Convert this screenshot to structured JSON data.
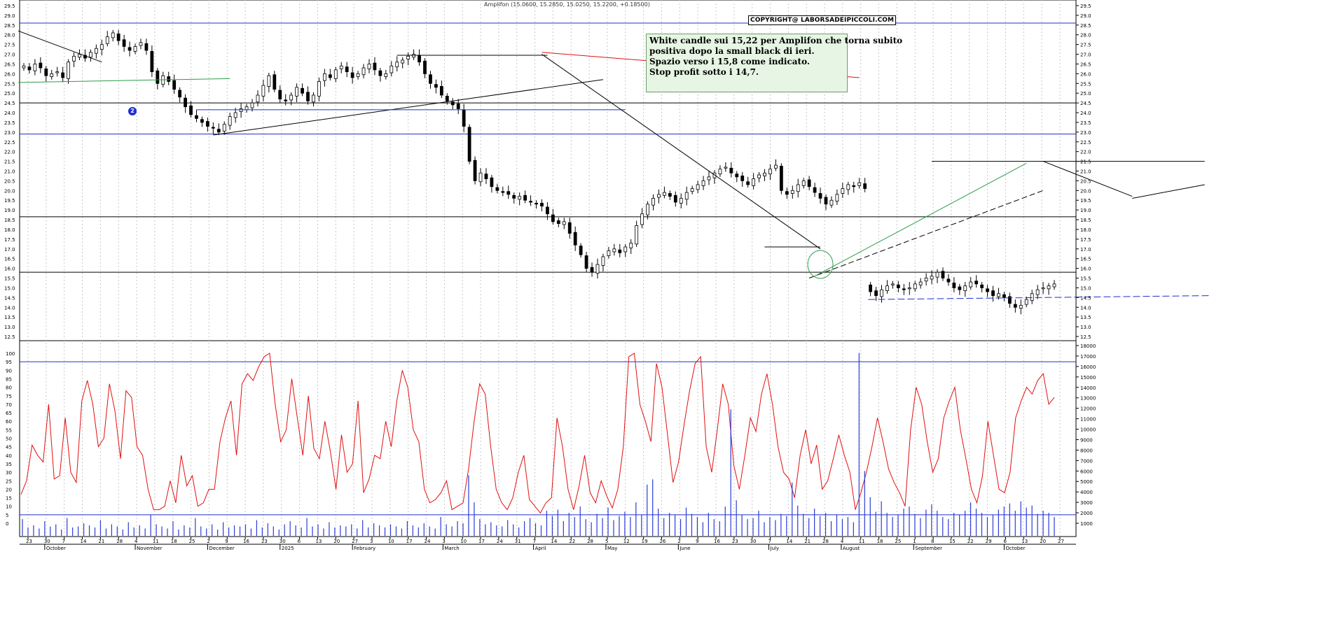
{
  "ohlc_label": "Amplifon (15.0600, 15.2850, 15.0250, 15.2200, +0.18500)",
  "copyright": "COPYRIGHT@ LABORSADEIPICCOLI.COM",
  "note_lines": [
    "White candle sui 15,22 per Amplifon che torna subito",
    "positiva dopo la small black di ieri.",
    "Spazio verso i 15,8 come indicato.",
    "Stop profit sotto i 14,7."
  ],
  "marker_label": "2",
  "colors": {
    "price_bg": "#ffffff",
    "grid": "#c8c8c8",
    "blue_line": "#1f2fcf",
    "red_line": "#e01010",
    "green_line": "#2a9d4a",
    "indicator_line": "#e01010",
    "volume_bar": "#2b3bd6"
  },
  "chart_data": [
    {
      "type": "candlestick",
      "title": "Amplifon",
      "y_ticks": [
        "12.5",
        "13.0",
        "13.5",
        "14.0",
        "14.5",
        "15.0",
        "15.5",
        "16.0",
        "16.5",
        "17.0",
        "17.5",
        "18.0",
        "18.5",
        "19.0",
        "19.5",
        "20.0",
        "20.5",
        "21.0",
        "21.5",
        "22.0",
        "22.5",
        "23.0",
        "23.5",
        "24.0",
        "24.5",
        "25.0",
        "25.5",
        "26.0",
        "26.5",
        "27.0",
        "27.5",
        "28.0",
        "28.5",
        "29.0",
        "29.5"
      ],
      "ylim": [
        12.3,
        29.8
      ],
      "horizontal_levels": [
        {
          "value": 28.6,
          "color": "blue"
        },
        {
          "value": 24.5,
          "color": "black"
        },
        {
          "value": 22.9,
          "color": "blue"
        },
        {
          "value": 18.65,
          "color": "black"
        },
        {
          "value": 15.8,
          "color": "black"
        }
      ],
      "x_date_ticks": [
        "23",
        "30",
        "7",
        "14",
        "21",
        "28",
        "4",
        "11",
        "18",
        "25",
        "2",
        "9",
        "16",
        "23",
        "30",
        "6",
        "13",
        "20",
        "27",
        "3",
        "10",
        "17",
        "24",
        "3",
        "10",
        "17",
        "24",
        "31",
        "7",
        "14",
        "22",
        "28",
        "5",
        "12",
        "19",
        "26",
        "2",
        "9",
        "16",
        "23",
        "30",
        "7",
        "14",
        "21",
        "28",
        "4",
        "11",
        "18",
        "25",
        "1",
        "8",
        "15",
        "22",
        "29",
        "6",
        "13",
        "20",
        "27"
      ],
      "x_month_labels": [
        "October",
        "November",
        "December",
        "2025",
        "February",
        "March",
        "April",
        "May",
        "June",
        "July",
        "August",
        "September",
        "October"
      ],
      "closes": [
        26.4,
        26.2,
        26.5,
        26.3,
        25.9,
        26.0,
        26.1,
        25.8,
        26.6,
        26.9,
        27.0,
        26.8,
        27.1,
        27.3,
        27.5,
        27.9,
        28.1,
        27.7,
        27.4,
        27.2,
        27.4,
        27.6,
        27.2,
        26.1,
        25.5,
        25.9,
        25.6,
        25.2,
        24.8,
        24.3,
        23.9,
        23.7,
        23.5,
        23.3,
        23.2,
        23.0,
        23.4,
        23.8,
        24.0,
        24.2,
        24.3,
        24.5,
        24.9,
        25.4,
        25.9,
        25.2,
        24.7,
        24.6,
        24.9,
        25.3,
        25.0,
        24.6,
        24.9,
        25.6,
        26.0,
        25.8,
        26.2,
        26.4,
        26.1,
        25.8,
        26.0,
        26.3,
        26.5,
        26.2,
        25.9,
        26.0,
        26.4,
        26.6,
        26.7,
        26.9,
        27.0,
        26.6,
        26.0,
        25.5,
        25.3,
        24.9,
        24.6,
        24.4,
        24.2,
        23.3,
        21.5,
        20.5,
        20.9,
        20.6,
        20.2,
        20.0,
        19.9,
        19.8,
        19.6,
        19.7,
        19.5,
        19.4,
        19.3,
        19.2,
        18.8,
        18.4,
        18.3,
        18.4,
        17.8,
        17.2,
        16.7,
        16.0,
        15.8,
        16.2,
        16.6,
        16.9,
        17.0,
        16.8,
        17.1,
        17.3,
        18.2,
        18.8,
        19.3,
        19.6,
        19.8,
        19.9,
        19.7,
        19.4,
        19.6,
        19.9,
        20.1,
        20.3,
        20.5,
        20.7,
        20.9,
        21.1,
        21.2,
        20.9,
        20.7,
        20.5,
        20.3,
        20.6,
        20.8,
        20.9,
        21.1,
        21.3,
        20.0,
        19.8,
        20.0,
        20.3,
        20.5,
        20.2,
        19.9,
        19.6,
        19.3,
        19.5,
        19.8,
        20.1,
        20.3,
        20.2,
        20.4,
        20.1,
        14.8,
        14.6,
        14.9,
        15.1,
        15.2,
        15.0,
        14.9,
        15.0,
        15.2,
        15.3,
        15.5,
        15.6,
        15.8,
        15.5,
        15.3,
        15.0,
        14.9,
        15.1,
        15.3,
        15.2,
        15.0,
        14.8,
        14.6,
        14.7,
        14.5,
        14.2,
        14.0,
        14.1,
        14.4,
        14.7,
        14.9,
        15.0,
        15.1,
        15.2
      ]
    },
    {
      "type": "line",
      "y_ticks": [
        "0",
        "5",
        "10",
        "15",
        "20",
        "25",
        "30",
        "35",
        "40",
        "45",
        "50",
        "55",
        "60",
        "65",
        "70",
        "75",
        "80",
        "85",
        "90",
        "95",
        "100"
      ],
      "ylim": [
        0,
        100
      ],
      "horizontal_levels": [
        95,
        5
      ],
      "series": [
        {
          "values": [
            17,
            25,
            46,
            40,
            36,
            70,
            26,
            28,
            62,
            30,
            24,
            72,
            84,
            70,
            45,
            50,
            82,
            66,
            38,
            78,
            74,
            45,
            40,
            20,
            8,
            8,
            10,
            25,
            12,
            40,
            22,
            28,
            10,
            12,
            20,
            20,
            48,
            62,
            72,
            40,
            82,
            88,
            84,
            92,
            98,
            100,
            70,
            48,
            55,
            85,
            62,
            40,
            75,
            44,
            38,
            60,
            42,
            20,
            52,
            30,
            35,
            72,
            18,
            26,
            40,
            38,
            60,
            45,
            72,
            90,
            80,
            55,
            48,
            20,
            12,
            14,
            18,
            25,
            8,
            10,
            12,
            32,
            60,
            82,
            76,
            45,
            20,
            12,
            8,
            15,
            30,
            40,
            14,
            10,
            6,
            12,
            15,
            62,
            45,
            20,
            8,
            22,
            40,
            18,
            12,
            25,
            16,
            9,
            20,
            45,
            98,
            100,
            70,
            60,
            48,
            94,
            80,
            52,
            24,
            36,
            58,
            78,
            94,
            98,
            45,
            30,
            55,
            82,
            70,
            34,
            20,
            40,
            62,
            54,
            76,
            88,
            70,
            45,
            30,
            26,
            15,
            40,
            55,
            35,
            46,
            20,
            25,
            38,
            52,
            40,
            30,
            8,
            18,
            30,
            45,
            62,
            48,
            32,
            24,
            18,
            10,
            55,
            80,
            70,
            48,
            30,
            38,
            62,
            72,
            80,
            55,
            38,
            20,
            12,
            28,
            60,
            40,
            20,
            18,
            30,
            62,
            72,
            80,
            76,
            84,
            88,
            70,
            74
          ]
        }
      ]
    },
    {
      "type": "bar",
      "y_ticks": [
        "1000",
        "2000",
        "3000",
        "4000",
        "5000",
        "6000",
        "7000",
        "8000",
        "9000",
        "10000",
        "11000",
        "12000",
        "13000",
        "14000",
        "15000",
        "16000",
        "17000",
        "18000"
      ],
      "ylim": [
        0,
        18000
      ],
      "values": [
        1400,
        600,
        800,
        500,
        1200,
        700,
        900,
        400,
        1500,
        600,
        700,
        1000,
        800,
        600,
        1300,
        500,
        900,
        700,
        400,
        1100,
        600,
        800,
        500,
        1800,
        900,
        700,
        500,
        1200,
        400,
        800,
        600,
        1500,
        700,
        500,
        900,
        400,
        1100,
        600,
        800,
        700,
        900,
        500,
        1300,
        600,
        1000,
        700,
        400,
        900,
        1200,
        800,
        600,
        1500,
        700,
        900,
        500,
        1100,
        600,
        800,
        700,
        900,
        500,
        1300,
        600,
        1000,
        800,
        600,
        900,
        700,
        500,
        1200,
        800,
        600,
        1000,
        700,
        500,
        1600,
        900,
        700,
        1200,
        1000,
        5600,
        3000,
        1400,
        900,
        1100,
        800,
        700,
        1300,
        900,
        600,
        1200,
        1500,
        1000,
        800,
        2200,
        1700,
        2300,
        1200,
        2000,
        1600,
        2600,
        1400,
        1100,
        1900,
        1500,
        2500,
        1300,
        1700,
        2100,
        1600,
        3000,
        1800,
        4700,
        5200,
        2400,
        1500,
        2000,
        1800,
        1400,
        2500,
        1900,
        1600,
        1100,
        2000,
        1400,
        1200,
        2600,
        11900,
        3200,
        1800,
        1400,
        1500,
        2200,
        1100,
        1600,
        1300,
        1900,
        1700,
        4900,
        2700,
        1900,
        1500,
        2400,
        1700,
        2000,
        1200,
        1800,
        1400,
        1600,
        1100,
        17300,
        6000,
        3500,
        2100,
        3100,
        2000,
        1600,
        1800,
        2400,
        2600,
        1900,
        1500,
        2300,
        2800,
        2200,
        1600,
        1400,
        2000,
        1800,
        2200,
        3000,
        2400,
        2000,
        1600,
        1800,
        2300,
        2600,
        2900,
        2200,
        3100,
        2500,
        2700,
        1900,
        2200,
        2000,
        1600
      ]
    }
  ]
}
